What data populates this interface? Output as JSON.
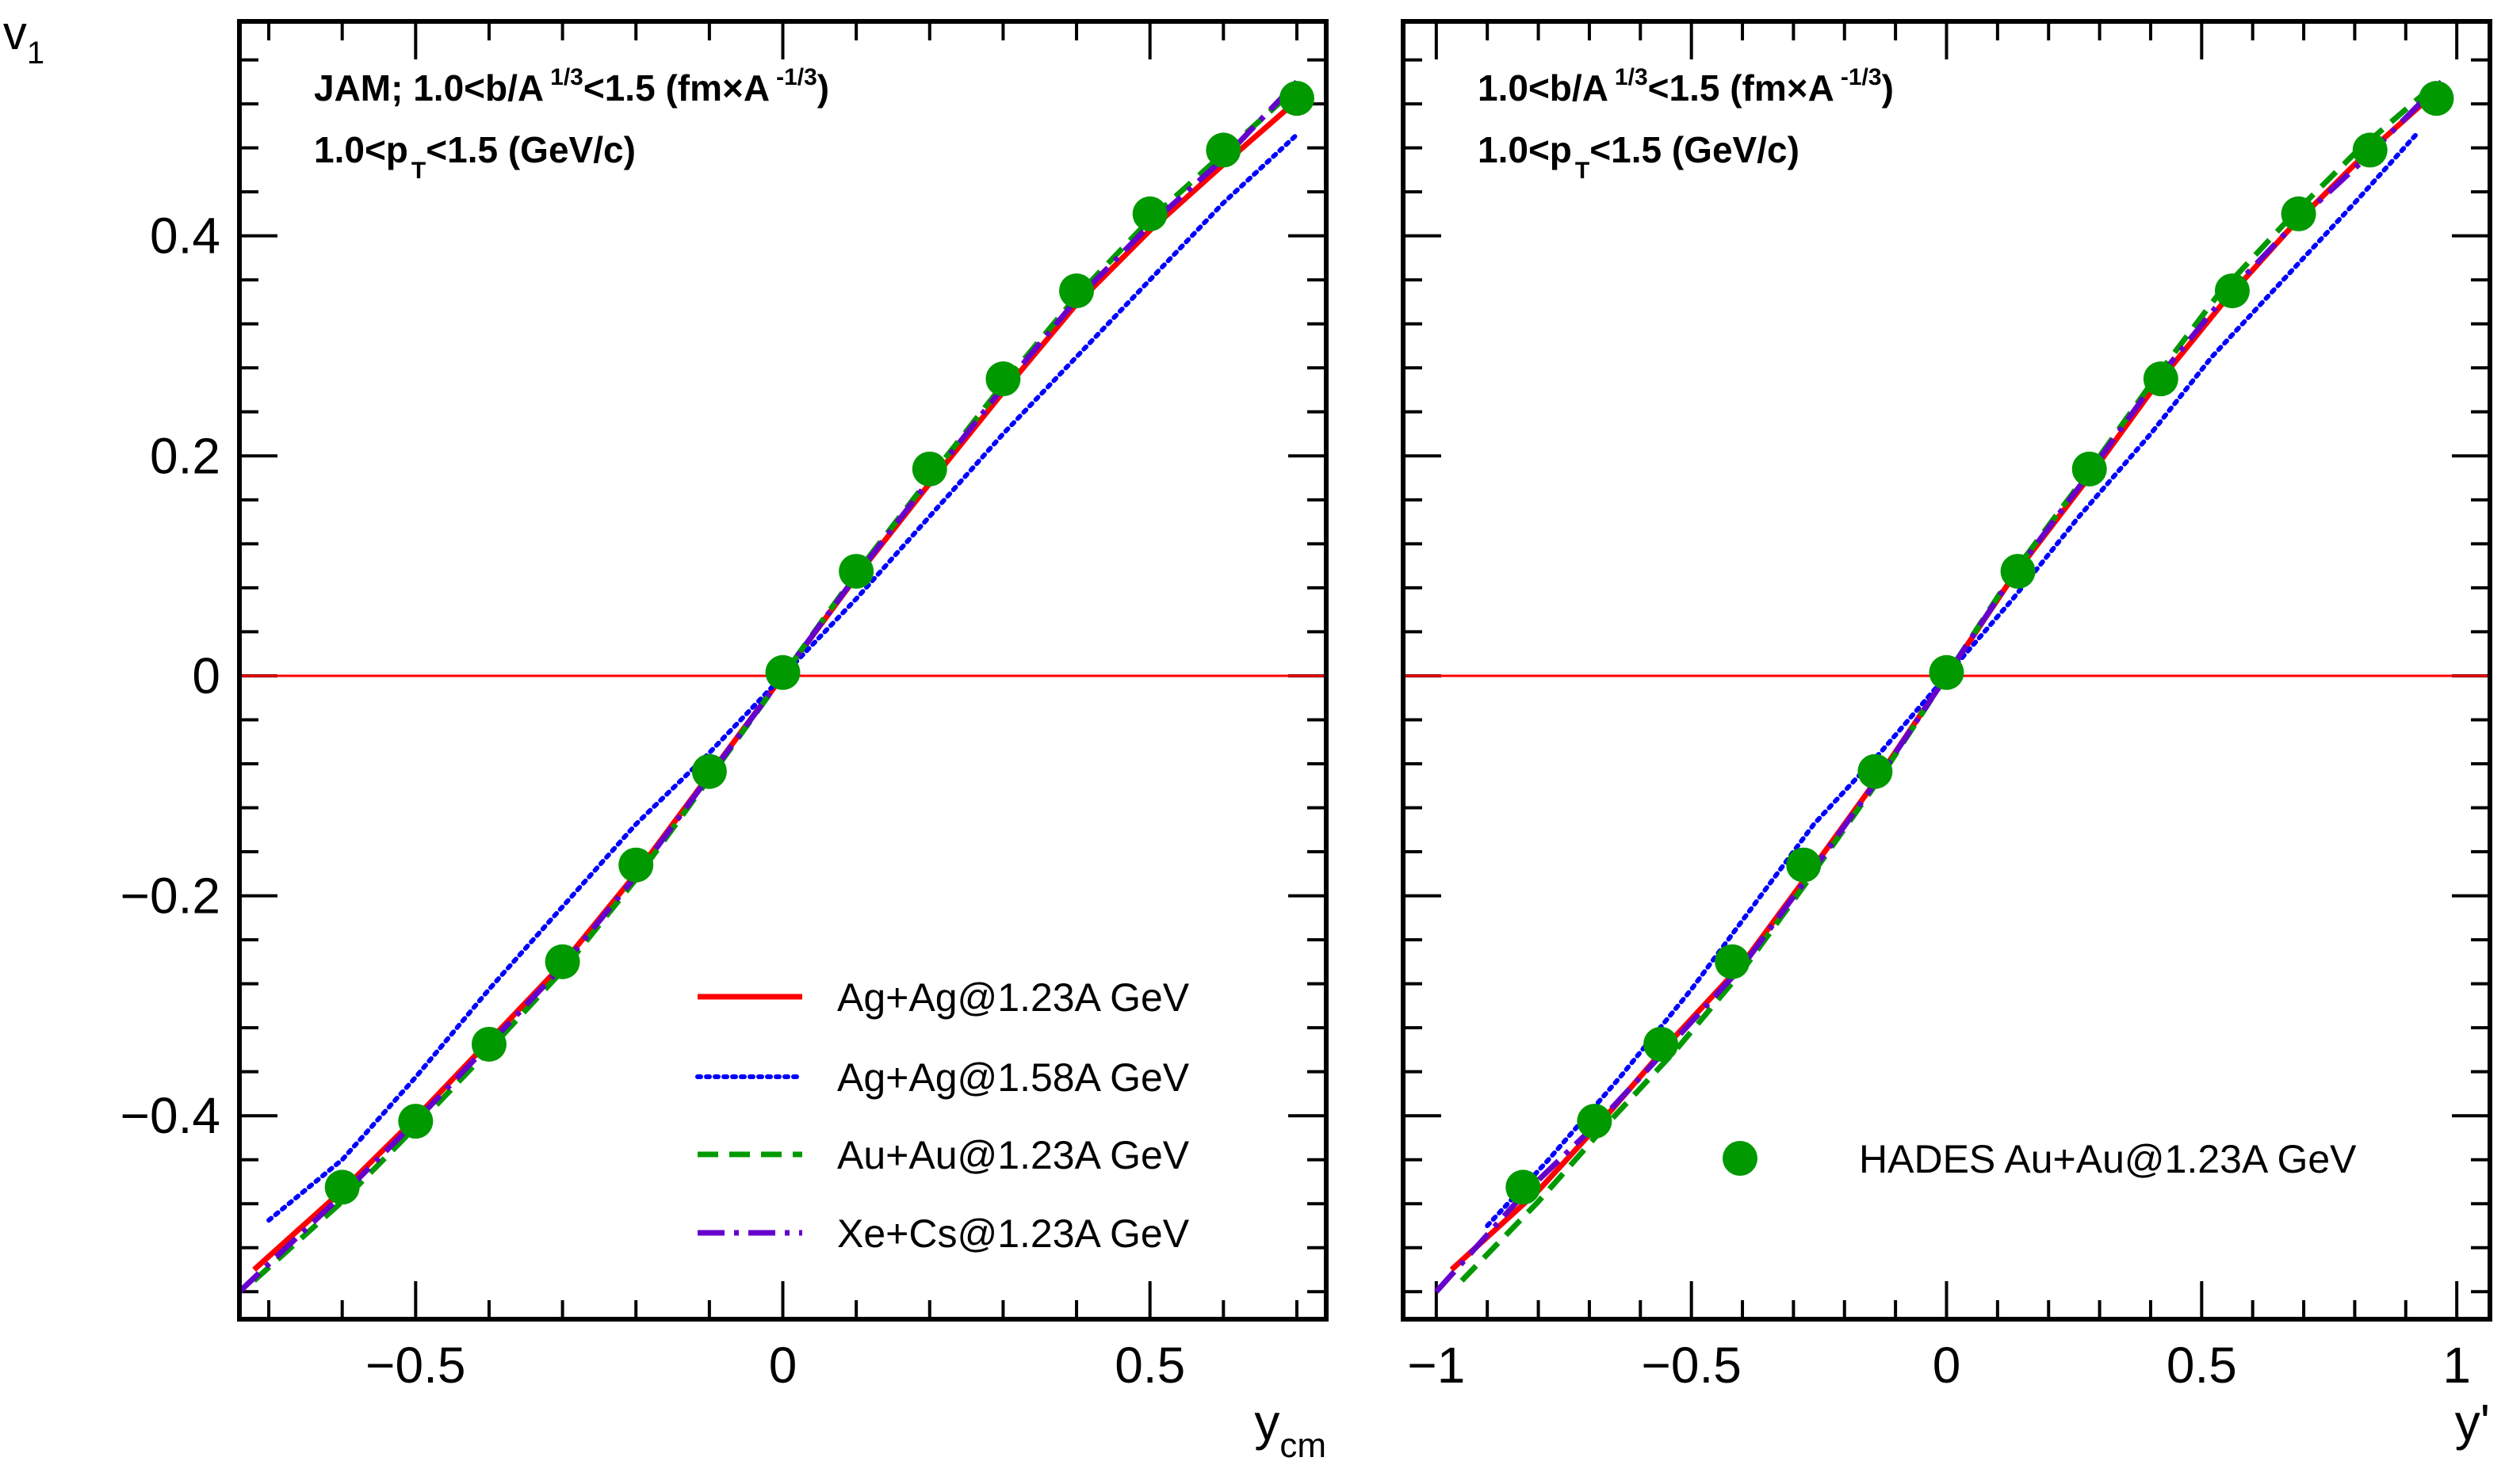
{
  "figure": {
    "y_axis_label": {
      "main": "v",
      "sub": "1"
    }
  },
  "chart_data": [
    {
      "type": "line",
      "panel": "left",
      "title": "",
      "xlabel": {
        "main": "y",
        "sub": "cm"
      },
      "ylabel": "v1",
      "xlim": [
        -0.74,
        0.74
      ],
      "ylim": [
        -0.585,
        0.595
      ],
      "x_ticks": [
        -0.5,
        0,
        0.5
      ],
      "x_tick_labels": [
        "−0.5",
        "0",
        "0.5"
      ],
      "y_ticks": [
        -0.4,
        -0.2,
        0,
        0.2,
        0.4
      ],
      "y_tick_labels": [
        "−0.4",
        "−0.2",
        "0",
        "0.2",
        "0.4"
      ],
      "annotations": [
        {
          "parts": [
            {
              "t": "JAM; 1.0<b/A",
              "s": "n"
            },
            {
              "t": "1/3",
              "s": "sup"
            },
            {
              "t": "<1.5 (fm×A",
              "s": "n"
            },
            {
              "t": "-1/3",
              "s": "sup"
            },
            {
              "t": ")",
              "s": "n"
            }
          ]
        },
        {
          "parts": [
            {
              "t": "1.0<p",
              "s": "n"
            },
            {
              "t": "T",
              "s": "sub"
            },
            {
              "t": "<1.5 (GeV/c)",
              "s": "n"
            }
          ]
        }
      ],
      "zero_line": true,
      "series": [
        {
          "name": "Ag+Ag@1.23A GeV",
          "style": "solid",
          "color": "#ff0000",
          "x": [
            -0.72,
            -0.6,
            -0.5,
            -0.4,
            -0.3,
            -0.2,
            -0.1,
            0,
            0.1,
            0.2,
            0.3,
            0.4,
            0.5,
            0.6,
            0.7
          ],
          "y": [
            -0.54,
            -0.468,
            -0.402,
            -0.332,
            -0.262,
            -0.18,
            -0.09,
            0,
            0.09,
            0.175,
            0.258,
            0.338,
            0.405,
            0.465,
            0.523
          ]
        },
        {
          "name": "Ag+Ag@1.58A GeV",
          "style": "dotted",
          "color": "#0000ff",
          "x": [
            -0.7,
            -0.6,
            -0.5,
            -0.4,
            -0.3,
            -0.2,
            -0.1,
            0,
            0.1,
            0.2,
            0.3,
            0.4,
            0.5,
            0.6,
            0.7
          ],
          "y": [
            -0.495,
            -0.44,
            -0.365,
            -0.285,
            -0.21,
            -0.135,
            -0.07,
            0,
            0.07,
            0.145,
            0.22,
            0.29,
            0.36,
            0.43,
            0.492
          ]
        },
        {
          "name": "Au+Au@1.23A GeV",
          "style": "dashed",
          "color": "#009900",
          "x": [
            -0.72,
            -0.6,
            -0.5,
            -0.4,
            -0.3,
            -0.2,
            -0.1,
            0,
            0.1,
            0.2,
            0.3,
            0.4,
            0.5,
            0.6,
            0.7
          ],
          "y": [
            -0.55,
            -0.478,
            -0.41,
            -0.34,
            -0.268,
            -0.185,
            -0.093,
            0,
            0.093,
            0.18,
            0.265,
            0.345,
            0.415,
            0.475,
            0.535
          ]
        },
        {
          "name": "Xe+Cs@1.23A GeV",
          "style": "dashdot",
          "color": "#6600cc",
          "x": [
            -0.74,
            -0.6,
            -0.5,
            -0.4,
            -0.3,
            -0.2,
            -0.1,
            0,
            0.1,
            0.2,
            0.3,
            0.4,
            0.5,
            0.6,
            0.7
          ],
          "y": [
            -0.56,
            -0.472,
            -0.405,
            -0.335,
            -0.264,
            -0.182,
            -0.091,
            0,
            0.091,
            0.178,
            0.262,
            0.342,
            0.41,
            0.47,
            0.54
          ]
        }
      ],
      "markers": {
        "name": "HADES Au+Au@1.23A GeV",
        "color": "#009900",
        "x": [
          -0.6,
          -0.5,
          -0.4,
          -0.3,
          -0.2,
          -0.1,
          0,
          0.1,
          0.2,
          0.3,
          0.4,
          0.5,
          0.6,
          0.7
        ],
        "y": [
          -0.465,
          -0.405,
          -0.335,
          -0.26,
          -0.172,
          -0.087,
          0.003,
          0.095,
          0.188,
          0.27,
          0.35,
          0.42,
          0.478,
          0.525
        ],
        "err": [
          0.015,
          0.012,
          0.012,
          0.012,
          0.012,
          0.012,
          0.012,
          0.012,
          0.015,
          0.015,
          0.015,
          0.015,
          0.015,
          0.015
        ]
      },
      "legend": {
        "position": "bottom-right",
        "entries": [
          "Ag+Ag@1.23A GeV",
          "Ag+Ag@1.58A GeV",
          "Au+Au@1.23A GeV",
          "Xe+Cs@1.23A GeV"
        ]
      }
    },
    {
      "type": "line",
      "panel": "right",
      "title": "",
      "xlabel": {
        "main": "y'",
        "sub": ""
      },
      "ylabel": "v1",
      "xlim": [
        -1.065,
        1.065
      ],
      "ylim": [
        -0.585,
        0.595
      ],
      "x_ticks": [
        -1,
        -0.5,
        0,
        0.5,
        1
      ],
      "x_tick_labels": [
        "−1",
        "−0.5",
        "0",
        "0.5",
        "1"
      ],
      "y_ticks": [
        -0.4,
        -0.2,
        0,
        0.2,
        0.4
      ],
      "y_tick_labels": [],
      "annotations": [
        {
          "parts": [
            {
              "t": "1.0<b/A",
              "s": "n"
            },
            {
              "t": "1/3",
              "s": "sup"
            },
            {
              "t": "<1.5 (fm×A",
              "s": "n"
            },
            {
              "t": "-1/3",
              "s": "sup"
            },
            {
              "t": ")",
              "s": "n"
            }
          ]
        },
        {
          "parts": [
            {
              "t": "1.0<p",
              "s": "n"
            },
            {
              "t": "T",
              "s": "sub"
            },
            {
              "t": "<1.5 (GeV/c)",
              "s": "n"
            }
          ]
        }
      ],
      "zero_line": true,
      "series": [
        {
          "name": "Ag+Ag@1.23A GeV",
          "style": "solid",
          "color": "#ff0000",
          "x": [
            -0.97,
            -0.8,
            -0.67,
            -0.54,
            -0.4,
            -0.27,
            -0.13,
            0,
            0.13,
            0.27,
            0.4,
            0.54,
            0.67,
            0.8,
            0.94
          ],
          "y": [
            -0.54,
            -0.468,
            -0.402,
            -0.332,
            -0.262,
            -0.18,
            -0.09,
            0,
            0.09,
            0.175,
            0.258,
            0.338,
            0.405,
            0.465,
            0.523
          ]
        },
        {
          "name": "Ag+Ag@1.58A GeV",
          "style": "dotted",
          "color": "#0000ff",
          "x": [
            -0.9,
            -0.78,
            -0.64,
            -0.5,
            -0.38,
            -0.26,
            -0.13,
            0,
            0.13,
            0.26,
            0.4,
            0.52,
            0.66,
            0.8,
            0.92
          ],
          "y": [
            -0.5,
            -0.44,
            -0.365,
            -0.285,
            -0.21,
            -0.135,
            -0.07,
            0,
            0.07,
            0.145,
            0.22,
            0.29,
            0.36,
            0.43,
            0.492
          ]
        },
        {
          "name": "Au+Au@1.23A GeV",
          "style": "dashed",
          "color": "#009900",
          "x": [
            -0.95,
            -0.8,
            -0.67,
            -0.53,
            -0.4,
            -0.27,
            -0.13,
            0,
            0.13,
            0.27,
            0.4,
            0.53,
            0.67,
            0.8,
            0.95
          ],
          "y": [
            -0.55,
            -0.478,
            -0.41,
            -0.34,
            -0.268,
            -0.185,
            -0.093,
            0,
            0.093,
            0.18,
            0.265,
            0.345,
            0.415,
            0.475,
            0.535
          ]
        },
        {
          "name": "Xe+Cs@1.23A GeV",
          "style": "dashdot",
          "color": "#6600cc",
          "x": [
            -1.0,
            -0.83,
            -0.68,
            -0.54,
            -0.4,
            -0.27,
            -0.13,
            0,
            0.13,
            0.27,
            0.4,
            0.54,
            0.68,
            0.82,
            0.97
          ],
          "y": [
            -0.56,
            -0.472,
            -0.405,
            -0.335,
            -0.264,
            -0.182,
            -0.091,
            0,
            0.091,
            0.178,
            0.262,
            0.342,
            0.41,
            0.47,
            0.54
          ]
        }
      ],
      "markers": {
        "name": "HADES Au+Au@1.23A GeV",
        "color": "#009900",
        "x": [
          -0.83,
          -0.69,
          -0.56,
          -0.42,
          -0.28,
          -0.14,
          0,
          0.14,
          0.28,
          0.42,
          0.56,
          0.69,
          0.83,
          0.96
        ],
        "y": [
          -0.465,
          -0.405,
          -0.335,
          -0.26,
          -0.172,
          -0.087,
          0.003,
          0.095,
          0.188,
          0.27,
          0.35,
          0.42,
          0.478,
          0.525
        ],
        "err": [
          0.015,
          0.012,
          0.012,
          0.012,
          0.012,
          0.012,
          0.012,
          0.012,
          0.015,
          0.015,
          0.015,
          0.015,
          0.015,
          0.015
        ]
      },
      "legend": {
        "position": "bottom-right",
        "entries": [
          "HADES Au+Au@1.23A GeV"
        ]
      }
    }
  ]
}
